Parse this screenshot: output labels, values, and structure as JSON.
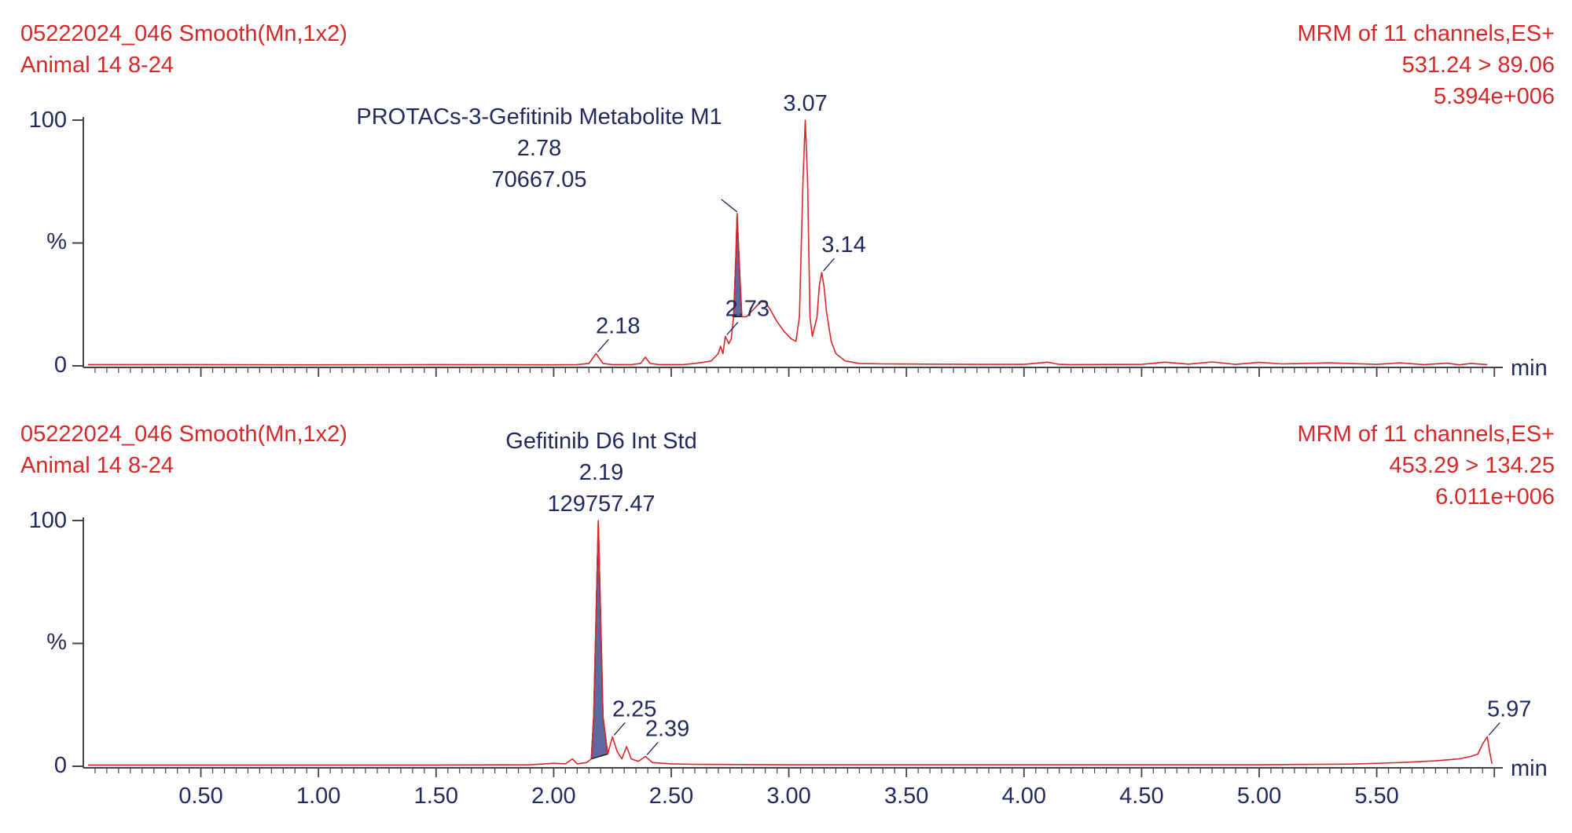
{
  "chart_data": [
    {
      "type": "line",
      "header_left": [
        "05222024_046 Smooth(Mn,1x2)",
        "Animal  14 8-24"
      ],
      "header_right": [
        "MRM of 11 channels,ES+",
        "531.24 > 89.06",
        "5.394e+006"
      ],
      "ylabel": "%",
      "xunit": "min",
      "yticks": [
        0,
        100
      ],
      "xlim": [
        0,
        6.0
      ],
      "ylim": [
        0,
        100
      ],
      "xticks": [],
      "trace_color": "#d62828",
      "fill_color": "#5d6a9f",
      "annotation_color": "#1f2a5a",
      "header_color": "#d62828",
      "compound": {
        "name": "PROTACs-3-Gefitinib Metabolite M1",
        "rt": "2.78",
        "area": "70667.05"
      },
      "peaks": [
        {
          "rt": 2.18,
          "label": "2.18",
          "height": 5
        },
        {
          "rt": 2.73,
          "label": "2.73",
          "height": 12
        },
        {
          "rt": 3.07,
          "label": "3.07",
          "height": 100
        },
        {
          "rt": 3.14,
          "label": "3.14",
          "height": 38
        }
      ],
      "integrated_peak": {
        "start": 2.76,
        "apex": 2.78,
        "end": 2.8,
        "height": 62
      },
      "trace": [
        [
          0.02,
          0.5
        ],
        [
          0.5,
          0.5
        ],
        [
          1.0,
          0.4
        ],
        [
          1.5,
          0.5
        ],
        [
          2.0,
          0.4
        ],
        [
          2.1,
          0.5
        ],
        [
          2.15,
          1
        ],
        [
          2.18,
          5
        ],
        [
          2.21,
          1
        ],
        [
          2.25,
          0.5
        ],
        [
          2.33,
          0.5
        ],
        [
          2.37,
          1
        ],
        [
          2.39,
          3.5
        ],
        [
          2.41,
          1
        ],
        [
          2.45,
          0.5
        ],
        [
          2.55,
          0.5
        ],
        [
          2.6,
          1
        ],
        [
          2.64,
          1.5
        ],
        [
          2.67,
          2
        ],
        [
          2.69,
          4
        ],
        [
          2.7,
          5
        ],
        [
          2.71,
          8
        ],
        [
          2.72,
          5
        ],
        [
          2.73,
          12
        ],
        [
          2.745,
          9
        ],
        [
          2.755,
          11
        ],
        [
          2.765,
          20
        ],
        [
          2.775,
          45
        ],
        [
          2.78,
          62
        ],
        [
          2.79,
          40
        ],
        [
          2.8,
          20
        ],
        [
          2.82,
          20
        ],
        [
          2.84,
          22
        ],
        [
          2.86,
          24
        ],
        [
          2.88,
          26
        ],
        [
          2.9,
          26
        ],
        [
          2.92,
          23
        ],
        [
          2.95,
          18
        ],
        [
          2.98,
          14
        ],
        [
          3.01,
          11
        ],
        [
          3.03,
          10
        ],
        [
          3.045,
          20
        ],
        [
          3.06,
          75
        ],
        [
          3.07,
          100
        ],
        [
          3.08,
          75
        ],
        [
          3.09,
          20
        ],
        [
          3.1,
          12
        ],
        [
          3.12,
          20
        ],
        [
          3.13,
          33
        ],
        [
          3.14,
          38
        ],
        [
          3.15,
          32
        ],
        [
          3.16,
          22
        ],
        [
          3.18,
          10
        ],
        [
          3.2,
          5
        ],
        [
          3.24,
          2
        ],
        [
          3.3,
          1
        ],
        [
          3.4,
          0.8
        ],
        [
          3.6,
          0.7
        ],
        [
          3.8,
          0.6
        ],
        [
          4.0,
          0.6
        ],
        [
          4.1,
          1.5
        ],
        [
          4.15,
          0.6
        ],
        [
          4.2,
          0.5
        ],
        [
          4.5,
          0.6
        ],
        [
          4.6,
          1.5
        ],
        [
          4.7,
          0.7
        ],
        [
          4.8,
          1.6
        ],
        [
          4.9,
          0.6
        ],
        [
          5.0,
          1.4
        ],
        [
          5.1,
          0.8
        ],
        [
          5.3,
          1.2
        ],
        [
          5.5,
          0.6
        ],
        [
          5.6,
          1.2
        ],
        [
          5.7,
          0.5
        ],
        [
          5.8,
          1.1
        ],
        [
          5.85,
          0.4
        ],
        [
          5.9,
          1.0
        ],
        [
          5.97,
          0.5
        ]
      ]
    },
    {
      "type": "line",
      "header_left": [
        "05222024_046 Smooth(Mn,1x2)",
        "Animal  14 8-24"
      ],
      "header_right": [
        "MRM of 11 channels,ES+",
        "453.29 > 134.25",
        "6.011e+006"
      ],
      "ylabel": "%",
      "xunit": "min",
      "yticks": [
        0,
        100
      ],
      "xlim": [
        0,
        6.0
      ],
      "ylim": [
        0,
        100
      ],
      "xticks": [
        "0.50",
        "1.00",
        "1.50",
        "2.00",
        "2.50",
        "3.00",
        "3.50",
        "4.00",
        "4.50",
        "5.00",
        "5.50"
      ],
      "trace_color": "#d62828",
      "fill_color": "#5d6a9f",
      "annotation_color": "#1f2a5a",
      "header_color": "#d62828",
      "compound": {
        "name": "Gefitinib D6 Int Std",
        "rt": "2.19",
        "area": "129757.47"
      },
      "peaks": [
        {
          "rt": 2.25,
          "label": "2.25",
          "height": 12
        },
        {
          "rt": 2.39,
          "label": "2.39",
          "height": 4
        },
        {
          "rt": 5.97,
          "label": "5.97",
          "height": 12
        }
      ],
      "integrated_peak": {
        "start": 2.16,
        "apex": 2.19,
        "end": 2.23,
        "height": 100
      },
      "trace": [
        [
          0.02,
          0.5
        ],
        [
          0.5,
          0.5
        ],
        [
          1.0,
          0.5
        ],
        [
          1.5,
          0.5
        ],
        [
          1.9,
          0.6
        ],
        [
          2.0,
          1.2
        ],
        [
          2.05,
          1
        ],
        [
          2.08,
          3
        ],
        [
          2.1,
          1
        ],
        [
          2.14,
          1.5
        ],
        [
          2.16,
          3
        ],
        [
          2.17,
          20
        ],
        [
          2.18,
          60
        ],
        [
          2.19,
          100
        ],
        [
          2.2,
          60
        ],
        [
          2.21,
          20
        ],
        [
          2.23,
          5
        ],
        [
          2.25,
          12
        ],
        [
          2.27,
          6
        ],
        [
          2.29,
          3
        ],
        [
          2.31,
          8
        ],
        [
          2.33,
          3
        ],
        [
          2.36,
          2
        ],
        [
          2.39,
          4
        ],
        [
          2.42,
          1.5
        ],
        [
          2.5,
          1
        ],
        [
          2.6,
          0.8
        ],
        [
          2.8,
          0.7
        ],
        [
          3.0,
          0.6
        ],
        [
          3.5,
          0.6
        ],
        [
          4.0,
          0.6
        ],
        [
          4.5,
          0.6
        ],
        [
          5.0,
          0.6
        ],
        [
          5.4,
          0.9
        ],
        [
          5.6,
          1.5
        ],
        [
          5.75,
          2.2
        ],
        [
          5.85,
          3
        ],
        [
          5.9,
          4
        ],
        [
          5.93,
          5
        ],
        [
          5.95,
          9
        ],
        [
          5.97,
          12
        ],
        [
          5.98,
          6
        ],
        [
          5.99,
          1
        ]
      ]
    }
  ]
}
